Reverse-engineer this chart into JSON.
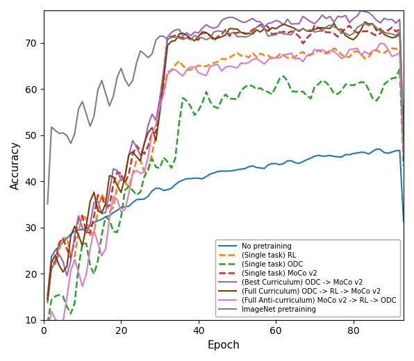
{
  "title": "",
  "xlabel": "Epoch",
  "ylabel": "Accuracy",
  "ylim": [
    10,
    77
  ],
  "xlim": [
    0,
    93
  ],
  "legend_entries": [
    "No pretraining",
    "(Single task) RL",
    "(Single task) ODC",
    "(Single task) MoCo v2",
    "(Best Curriculum) ODC -> MoCo v2",
    "(Full Curriculum) ODC -> RL -> MoCo v2",
    "(Full Anti-curriculum) MoCo v2 -> RL -> ODC",
    "ImageNet pretraining"
  ],
  "colors": {
    "no_pretrain": "#1f77b4",
    "rl": "#ff7f0e",
    "odc": "#2ca02c",
    "moco": "#d62728",
    "best_curr": "#9467bd",
    "full_curr": "#7B3F00",
    "anti_curr": "#e377c2",
    "imagenet": "#7f7f7f"
  }
}
